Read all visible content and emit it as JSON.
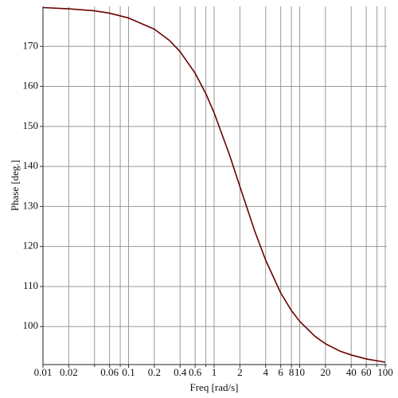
{
  "chart_data": {
    "type": "line",
    "xlabel": "Freq [rad/s]",
    "ylabel": "Phase [deg.]",
    "x": [
      0.01,
      0.02,
      0.04,
      0.06,
      0.1,
      0.2,
      0.3,
      0.4,
      0.6,
      0.8,
      1,
      1.5,
      2,
      3,
      4,
      6,
      8,
      10,
      15,
      20,
      30,
      40,
      60,
      100
    ],
    "series": [
      {
        "color": "#6b0000",
        "values": [
          179.7,
          179.4,
          178.9,
          178.3,
          177.1,
          174.3,
          171.5,
          168.7,
          163.3,
          158.2,
          153.4,
          143.1,
          135,
          123.7,
          116.6,
          108.4,
          104.0,
          101.3,
          97.6,
          95.7,
          93.8,
          92.9,
          91.9,
          91.1
        ]
      }
    ],
    "xscale": "log",
    "xlim": [
      0.01,
      100
    ],
    "ylim": [
      90.5,
      180
    ],
    "xticks": [
      0.01,
      0.02,
      0.06,
      0.1,
      0.2,
      0.4,
      0.6,
      1,
      2,
      4,
      6,
      8,
      10,
      20,
      40,
      60,
      100
    ],
    "xminor": [
      0.04,
      0.08,
      0.8,
      80
    ],
    "yticks": [
      100,
      110,
      120,
      130,
      140,
      150,
      160,
      170
    ],
    "grid": true
  }
}
